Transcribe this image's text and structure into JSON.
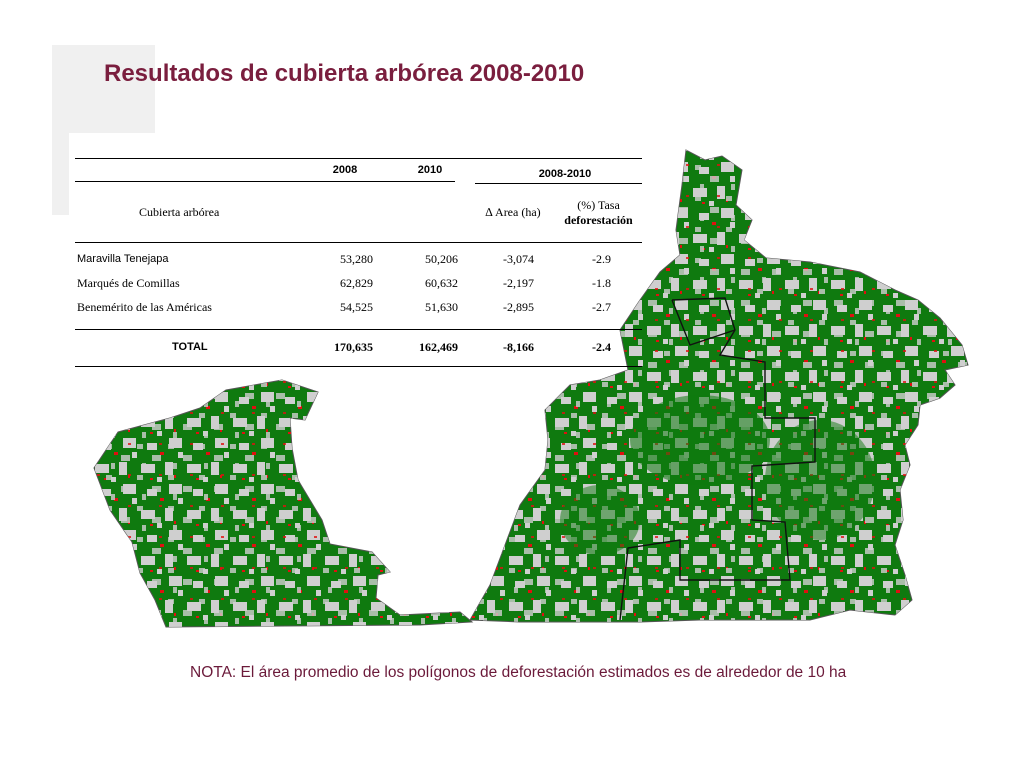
{
  "title": "Resultados de cubierta arbórea 2008-2010",
  "table": {
    "header_years": [
      "2008",
      "2010",
      "2008-2010"
    ],
    "row_header": "Cubierta arbórea",
    "col_delta": "∆ Area (ha)",
    "col_rate_line1": "(%) Tasa",
    "col_rate_line2": "deforestación",
    "rows": [
      {
        "name": "Maravilla Tenejapa",
        "y2008": "53,280",
        "y2010": "50,206",
        "delta": "-3,074",
        "rate": "-2.9"
      },
      {
        "name": "Marqués de Comillas",
        "y2008": "62,829",
        "y2010": "60,632",
        "delta": "-2,197",
        "rate": "-1.8"
      },
      {
        "name": "Benemérito de las Américas",
        "y2008": "54,525",
        "y2010": "51,630",
        "delta": "-2,895",
        "rate": "-2.7"
      }
    ],
    "total": {
      "name": "TOTAL",
      "y2008": "170,635",
      "y2010": "162,469",
      "delta": "-8,166",
      "rate": "-2.4"
    }
  },
  "note": "NOTA: El área promedio de los polígonos de deforestación estimados es de alrededor de 10 ha",
  "colors": {
    "title": "#7a1e3e",
    "forest": "#0f7a0f",
    "non_forest": "#cfcfcf",
    "deforestation": "#e01010",
    "boundary": "#111111"
  }
}
